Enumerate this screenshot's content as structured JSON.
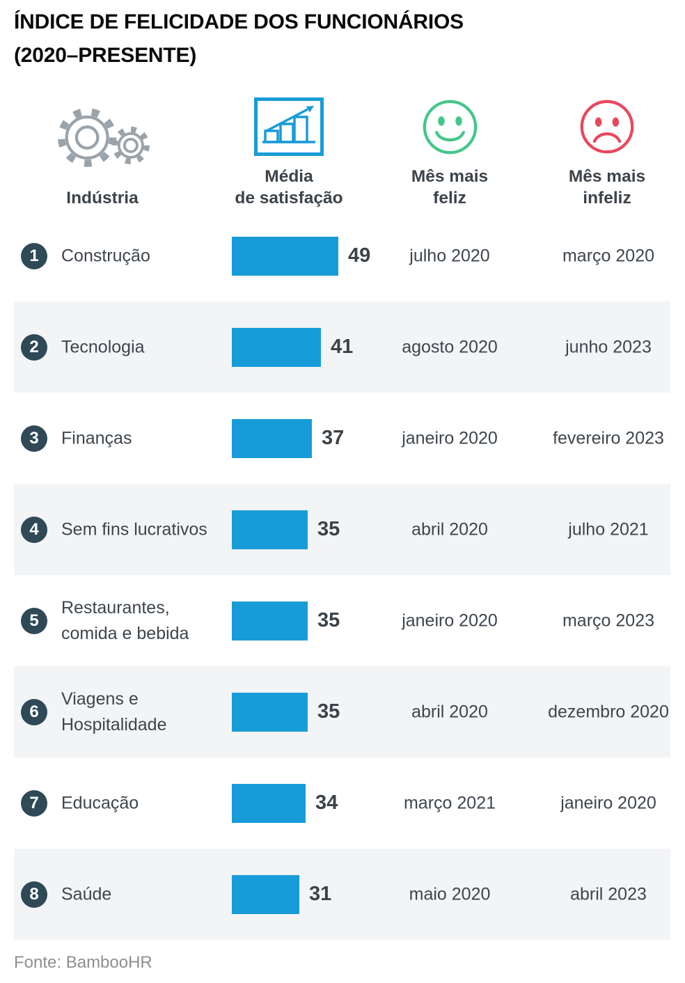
{
  "title": "ÍNDICE DE FELICIDADE DOS FUNCIONÁRIOS\n(2020–PRESENTE)",
  "columns": [
    {
      "id": "industry",
      "label": "Indústria",
      "icon": "gears-icon"
    },
    {
      "id": "satisfaction",
      "label": "Média\nde satisfação",
      "icon": "bar-chart-icon"
    },
    {
      "id": "happiest",
      "label": "Mês mais\nfeliz",
      "icon": "happy-face-icon"
    },
    {
      "id": "unhappiest",
      "label": "Mês mais\ninfeliz",
      "icon": "sad-face-icon"
    }
  ],
  "chart_data": {
    "type": "bar",
    "orientation": "horizontal",
    "title": "ÍNDICE DE FELICIDADE DOS FUNCIONÁRIOS (2020–PRESENTE)",
    "series_label": "Média de satisfação",
    "categories": [
      "Construção",
      "Tecnologia",
      "Finanças",
      "Sem fins lucrativos",
      "Restaurantes, comida e bebida",
      "Viagens e Hospitalidade",
      "Educação",
      "Saúde"
    ],
    "values": [
      49,
      41,
      37,
      35,
      35,
      35,
      34,
      31
    ],
    "happiest_month": [
      "julho 2020",
      "agosto 2020",
      "janeiro 2020",
      "abril 2020",
      "janeiro 2020",
      "abril 2020",
      "março 2021",
      "maio 2020"
    ],
    "unhappiest_month": [
      "março 2020",
      "junho 2023",
      "fevereiro 2023",
      "julho 2021",
      "março 2023",
      "dezembro 2020",
      "janeiro 2020",
      "abril 2023"
    ],
    "value_axis_hint": [
      0,
      60
    ],
    "bar_color": "#189cd8",
    "legend_position": "none",
    "grid": false
  },
  "rows": [
    {
      "rank": "1",
      "industry": "Construção"
    },
    {
      "rank": "2",
      "industry": "Tecnologia"
    },
    {
      "rank": "3",
      "industry": "Finanças"
    },
    {
      "rank": "4",
      "industry": "Sem fins lucrativos"
    },
    {
      "rank": "5",
      "industry": "Restaurantes,\ncomida e bebida"
    },
    {
      "rank": "6",
      "industry": "Viagens e\nHospitalidade"
    },
    {
      "rank": "7",
      "industry": "Educação"
    },
    {
      "rank": "8",
      "industry": "Saúde"
    }
  ],
  "footer": {
    "source": "Fonte: BambooHR"
  },
  "colors": {
    "bar_blue": "#189cd8",
    "rank_badge": "#2f4956",
    "stripe_gray": "#f3f4f6",
    "happy_green": "#44c78a",
    "sad_red": "#e8485e",
    "icon_gray": "#9aa3aa",
    "text_dark": "#3e454c",
    "title_black": "#0a0a0a",
    "source_gray": "#8c8f92"
  }
}
